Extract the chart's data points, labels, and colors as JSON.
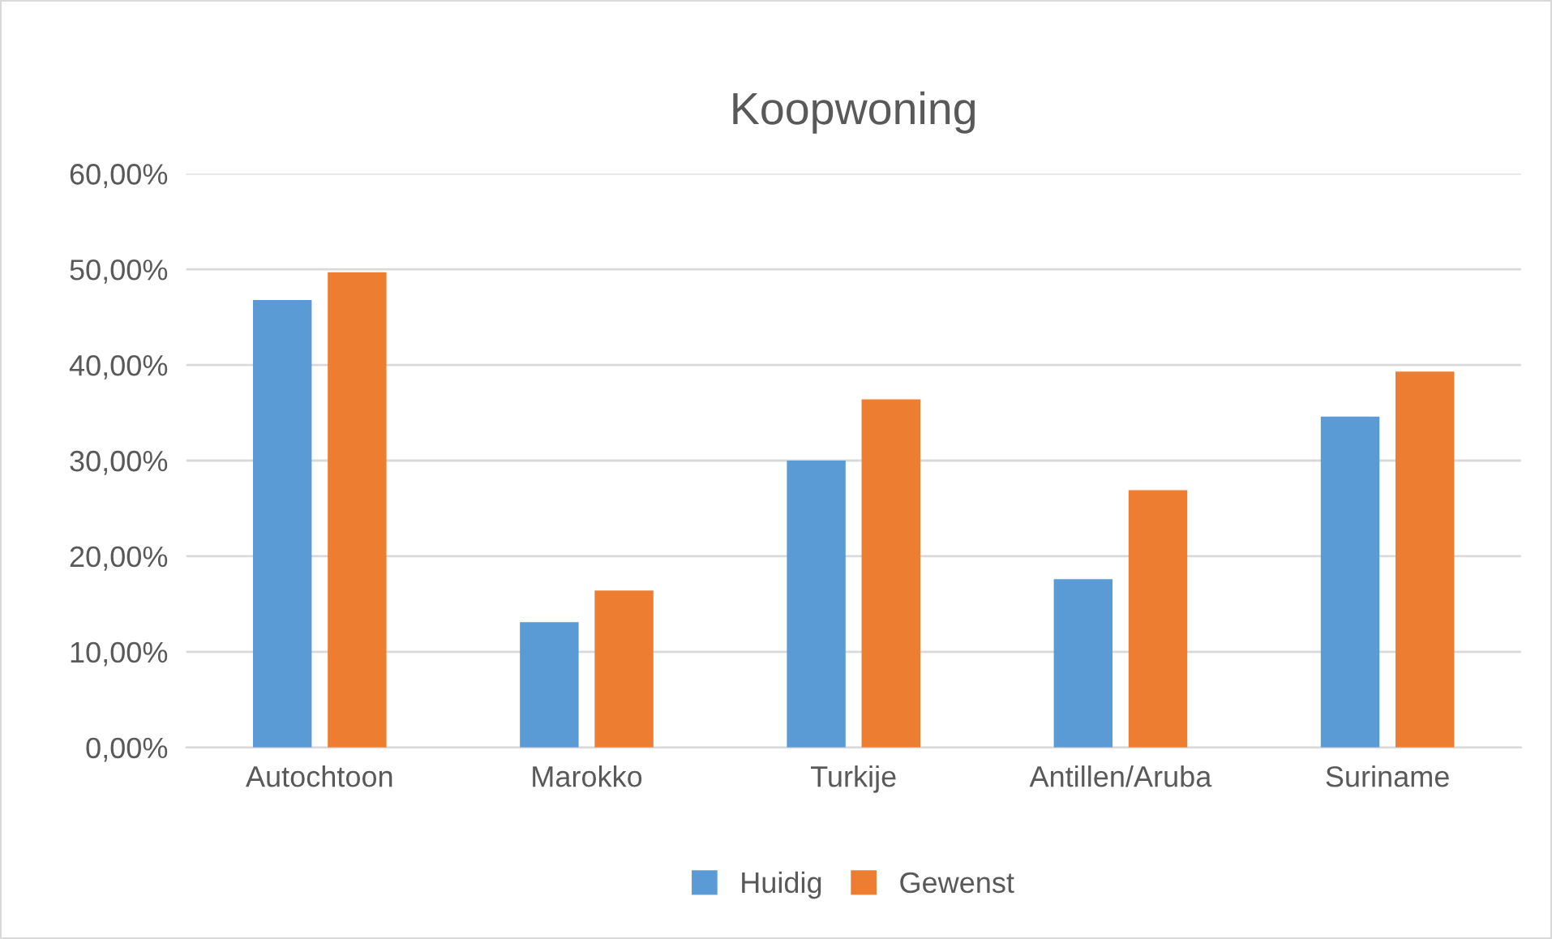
{
  "chart_data": {
    "type": "bar",
    "title": "Koopwoning",
    "categories": [
      "Autochtoon",
      "Marokko",
      "Turkije",
      "Antillen/Aruba",
      "Suriname"
    ],
    "series": [
      {
        "name": "Huidig",
        "color": "#5b9bd5",
        "values": [
          46.8,
          13.1,
          30.0,
          17.6,
          34.6
        ]
      },
      {
        "name": "Gewenst",
        "color": "#ed7d31",
        "values": [
          49.7,
          16.4,
          36.4,
          26.9,
          39.3
        ]
      }
    ],
    "ylim": [
      0,
      60
    ],
    "yticks": [
      {
        "value": 0,
        "label": "0,00%"
      },
      {
        "value": 10,
        "label": "10,00%"
      },
      {
        "value": 20,
        "label": "20,00%"
      },
      {
        "value": 30,
        "label": "30,00%"
      },
      {
        "value": 40,
        "label": "40,00%"
      },
      {
        "value": 50,
        "label": "50,00%"
      },
      {
        "value": 60,
        "label": "60,00%"
      }
    ],
    "grid": "y",
    "legend": "bottom"
  }
}
